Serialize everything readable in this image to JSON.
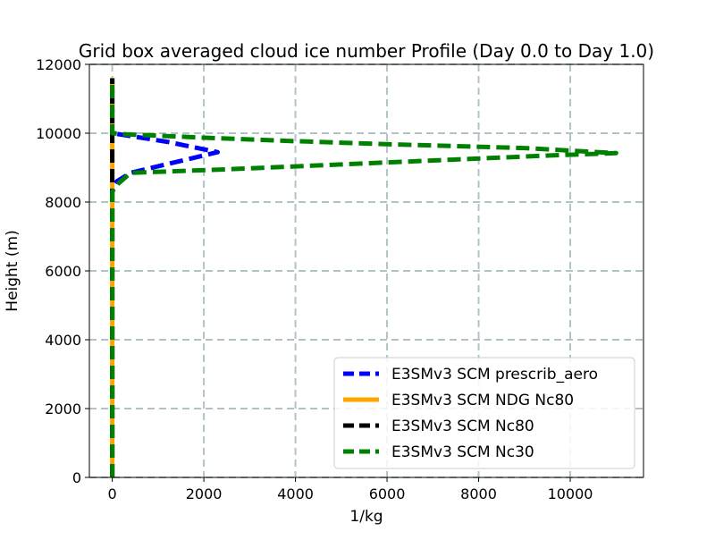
{
  "chart_data": {
    "type": "line",
    "title": "Grid box averaged cloud ice number Profile (Day 0.0 to Day 1.0)",
    "xlabel": "1/kg",
    "ylabel": "Height (m)",
    "xlim": [
      -500,
      11600
    ],
    "ylim": [
      0,
      12000
    ],
    "xticks": [
      0,
      2000,
      4000,
      6000,
      8000,
      10000
    ],
    "yticks": [
      0,
      2000,
      4000,
      6000,
      8000,
      10000,
      12000
    ],
    "grid": true,
    "legend_position": "lower-right",
    "series": [
      {
        "name": "E3SMv3 SCM prescrib_aero",
        "color": "#0000ff",
        "dash": "dashed",
        "x": [
          0,
          0,
          0,
          100,
          400,
          2300,
          1200,
          0,
          0
        ],
        "y": [
          0,
          8300,
          8400,
          8600,
          8850,
          9450,
          9750,
          10000,
          11600
        ]
      },
      {
        "name": "E3SMv3 SCM NDG Nc80",
        "color": "#ffa500",
        "dash": "solid",
        "x": [
          0,
          0,
          0,
          0
        ],
        "y": [
          0,
          8300,
          10000,
          11600
        ]
      },
      {
        "name": "E3SMv3 SCM Nc80",
        "color": "#000000",
        "dash": "dashed",
        "x": [
          0,
          0
        ],
        "y": [
          0,
          11600
        ]
      },
      {
        "name": "E3SMv3 SCM Nc30",
        "color": "#008000",
        "dash": "dashed",
        "x": [
          0,
          0,
          100,
          400,
          2500,
          6000,
          9500,
          11000,
          9000,
          6000,
          4000,
          2000,
          300,
          0,
          0
        ],
        "y": [
          0,
          8300,
          8500,
          8850,
          8950,
          9150,
          9350,
          9420,
          9570,
          9680,
          9770,
          9870,
          9970,
          10000,
          11600
        ]
      }
    ]
  }
}
